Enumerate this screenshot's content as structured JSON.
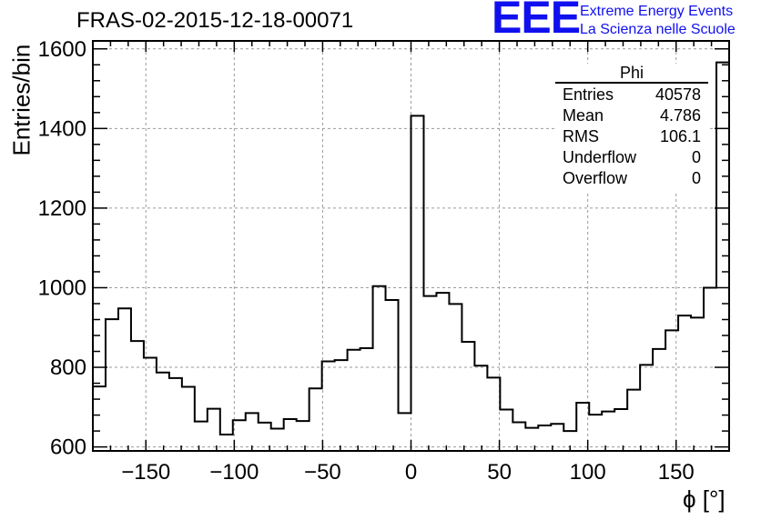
{
  "title": "FRAS-02-2015-12-18-00071",
  "logo": {
    "mark": "EEE",
    "line1": "Extreme Energy Events",
    "line2": "La Scienza nelle Scuole",
    "color": "#1010ee"
  },
  "stats": {
    "title": "Phi",
    "rows": [
      {
        "key": "Entries",
        "value": "40578"
      },
      {
        "key": "Mean",
        "value": "4.786"
      },
      {
        "key": "RMS",
        "value": "106.1"
      },
      {
        "key": "Underflow",
        "value": "0"
      },
      {
        "key": "Overflow",
        "value": "0"
      }
    ]
  },
  "chart_data": {
    "type": "bar",
    "style": "step-histogram",
    "xlabel": "ϕ [°]",
    "ylabel": "Entries/bin",
    "xlim": [
      -180,
      180
    ],
    "ylim": [
      590,
      1620
    ],
    "grid": true,
    "bin_width": 7.2,
    "x_ticks": [
      -150,
      -100,
      -50,
      0,
      50,
      100,
      150
    ],
    "y_ticks": [
      600,
      800,
      1000,
      1200,
      1400,
      1600
    ],
    "values": [
      752,
      921,
      948,
      866,
      824,
      787,
      773,
      751,
      664,
      696,
      631,
      667,
      685,
      661,
      646,
      670,
      665,
      747,
      815,
      818,
      844,
      848,
      1004,
      969,
      685,
      1432,
      979,
      987,
      959,
      864,
      804,
      774,
      694,
      662,
      648,
      654,
      658,
      640,
      711,
      681,
      689,
      695,
      744,
      806,
      846,
      893,
      930,
      925,
      1000,
      1566
    ],
    "line_color": "#000000",
    "grid_color": "#9a9a9a"
  }
}
